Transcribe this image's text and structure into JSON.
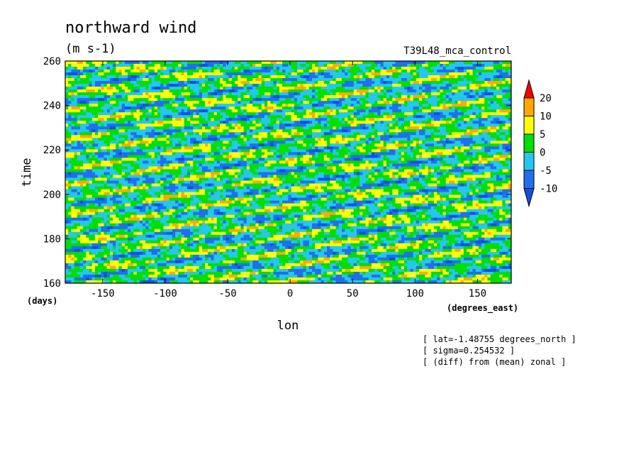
{
  "chart_data": {
    "type": "heatmap",
    "title": "northward wind",
    "units": "(m s-1)",
    "run_label": "T39L48_mca_control",
    "xlabel": "lon",
    "ylabel": "time",
    "x_units": "(degrees_east)",
    "y_units": "(days)",
    "xlim": [
      -180,
      177
    ],
    "ylim": [
      160,
      260
    ],
    "x_ticks": [
      -150,
      -100,
      -50,
      0,
      50,
      100,
      150
    ],
    "y_ticks": [
      160,
      180,
      200,
      220,
      240,
      260
    ],
    "x_tick_labels": [
      "-150",
      "-100",
      "-50",
      "0",
      "50",
      "100",
      "150"
    ],
    "y_tick_labels": [
      "160",
      "180",
      "200",
      "220",
      "240",
      "260"
    ],
    "colorbar": {
      "levels": [
        -10,
        -5,
        0,
        5,
        10,
        20
      ],
      "labels": [
        "20",
        "10",
        "5",
        "0",
        "-5",
        "-10"
      ],
      "colors": [
        "#1f6ff0",
        "#22c8f0",
        "#00e000",
        "#ffff00",
        "#ffa800",
        "#ff0000"
      ],
      "extend": "both"
    },
    "annotations": [
      "[ lat=-1.48755 degrees_north ]",
      "[ sigma=0.254532 ]",
      "[ (diff) from (mean) zonal ]"
    ],
    "grid": false
  }
}
